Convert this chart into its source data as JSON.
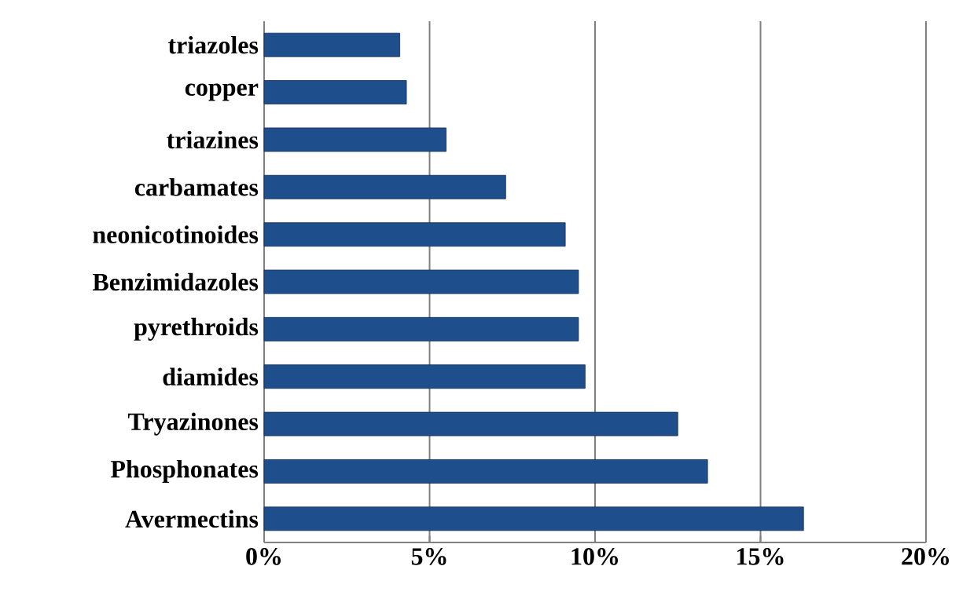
{
  "chart_data": {
    "type": "bar",
    "orientation": "horizontal",
    "categories": [
      "triazoles",
      "copper",
      "triazines",
      "carbamates",
      "neonicotinoides",
      "Benzimidazoles",
      "pyrethroids",
      "diamides",
      "Tryazinones",
      "Phosphonates",
      "Avermectins"
    ],
    "values": [
      4.1,
      4.3,
      5.5,
      7.3,
      9.1,
      9.5,
      9.5,
      9.7,
      12.5,
      13.4,
      16.3
    ],
    "color": "#1f4e8c",
    "xlim": [
      0,
      20
    ],
    "xticks": [
      {
        "value": 0,
        "label": "0%"
      },
      {
        "value": 5,
        "label": "5%"
      },
      {
        "value": 10,
        "label": "10%"
      },
      {
        "value": 15,
        "label": "15%"
      },
      {
        "value": 20,
        "label": "20%"
      }
    ],
    "grid": "x"
  }
}
